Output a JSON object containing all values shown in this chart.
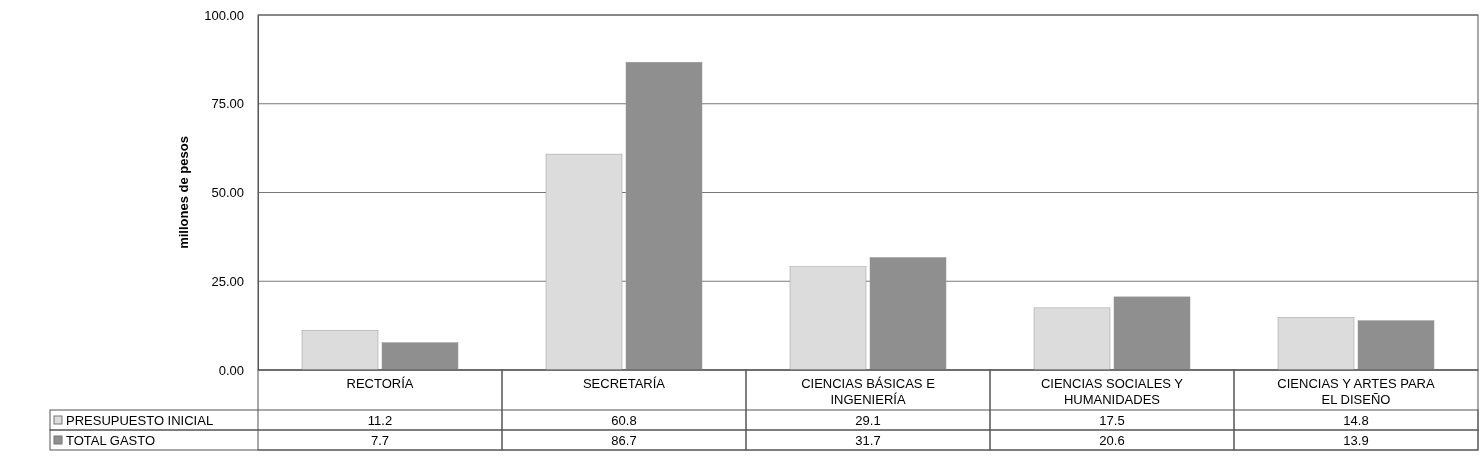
{
  "chart_data": {
    "type": "bar",
    "ylabel": "millones de pesos",
    "categories": [
      "RECTORÍA",
      "SECRETARÍA",
      "CIENCIAS BÁSICAS E INGENIERÍA",
      "CIENCIAS SOCIALES Y HUMANIDADES",
      "CIENCIAS Y ARTES PARA EL DISEÑO"
    ],
    "series": [
      {
        "name": "PRESUPUESTO INICIAL",
        "color": "#dcdcdc",
        "values": [
          11.2,
          60.8,
          29.1,
          17.5,
          14.8
        ]
      },
      {
        "name": "TOTAL GASTO",
        "color": "#8f8f8f",
        "values": [
          7.7,
          86.7,
          31.7,
          20.6,
          13.9
        ]
      }
    ],
    "ylim": [
      0,
      100
    ],
    "yticks": [
      {
        "value": 0,
        "label": "0.00"
      },
      {
        "value": 25,
        "label": "25.00"
      },
      {
        "value": 50,
        "label": "50.00"
      },
      {
        "value": 75,
        "label": "75.00"
      },
      {
        "value": 100,
        "label": "100.00"
      }
    ],
    "grid": true,
    "legend": "bottom",
    "data_labels": true
  }
}
